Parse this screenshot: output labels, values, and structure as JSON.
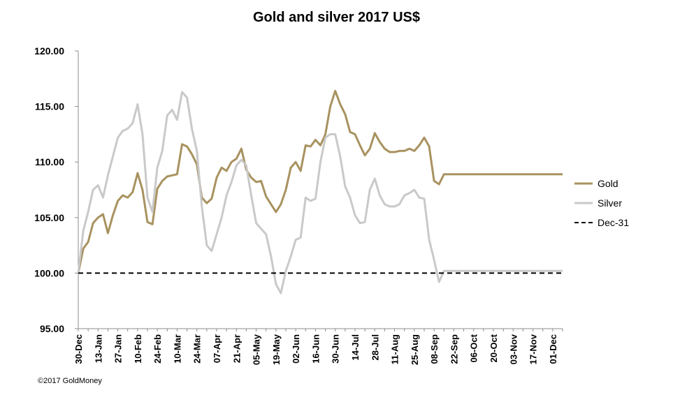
{
  "chart_data": {
    "type": "line",
    "title": "Gold and silver 2017  US$",
    "xlabel": "",
    "ylabel": "",
    "ylim": [
      95,
      120
    ],
    "yticks": [
      "95.00",
      "100.00",
      "105.00",
      "110.00",
      "115.00",
      "120.00"
    ],
    "xticks": [
      "30-Dec",
      "13-Jan",
      "27-Jan",
      "10-Feb",
      "24-Feb",
      "10-Mar",
      "24-Mar",
      "07-Apr",
      "21-Apr",
      "05-May",
      "19-May",
      "02-Jun",
      "16-Jun",
      "30-Jun",
      "14-Jul",
      "28-Jul",
      "11-Aug",
      "25-Aug",
      "08-Sep",
      "22-Sep",
      "06-Oct",
      "20-Oct",
      "03-Nov",
      "17-Nov",
      "01-Dec"
    ],
    "x_index_range": [
      0,
      49
    ],
    "grid": false,
    "legend_position": "right",
    "series": [
      {
        "name": "Gold",
        "color": "#a8925f",
        "x": [
          0,
          0.5,
          1,
          1.5,
          2,
          2.5,
          3,
          3.5,
          4,
          4.5,
          5,
          5.5,
          6,
          6.5,
          7,
          7.5,
          8,
          8.5,
          9,
          9.5,
          10,
          10.5,
          11,
          11.5,
          12,
          12.5,
          13,
          13.5,
          14,
          14.5,
          15,
          15.5,
          16,
          16.5,
          17,
          17.5,
          18,
          18.5,
          19,
          19.5,
          20,
          20.5,
          21,
          21.5,
          22,
          22.5,
          23,
          23.5,
          24,
          24.5,
          25,
          25.5,
          26,
          26.5,
          27,
          27.5,
          28,
          28.5,
          29,
          29.5,
          30,
          30.5,
          31,
          31.5,
          32,
          32.5,
          33,
          33.5,
          34,
          34.5,
          35,
          35.5,
          36,
          36.5,
          37,
          37.5,
          38,
          38.5,
          39,
          39.5,
          40,
          40.5,
          41,
          41.5,
          42,
          42.5,
          43,
          43.5,
          44,
          44.5,
          45,
          45.5,
          46,
          46.5,
          47,
          47.5,
          48,
          48.5,
          49
        ],
        "values": [
          100.0,
          102.2,
          102.8,
          104.5,
          105.0,
          105.3,
          103.6,
          105.2,
          106.5,
          107.0,
          106.8,
          107.3,
          109.0,
          107.5,
          104.6,
          104.4,
          107.6,
          108.3,
          108.7,
          108.8,
          108.9,
          111.6,
          111.4,
          110.7,
          109.8,
          106.8,
          106.3,
          106.7,
          108.6,
          109.5,
          109.2,
          110.0,
          110.3,
          111.2,
          109.3,
          108.6,
          108.2,
          108.3,
          106.9,
          106.2,
          105.5,
          106.2,
          107.5,
          109.5,
          110.0,
          109.2,
          111.5,
          111.4,
          112.0,
          111.5,
          112.5,
          115.0,
          116.4,
          115.2,
          114.3,
          112.7,
          112.5,
          111.5,
          110.6,
          111.2,
          112.6,
          111.8,
          111.2,
          110.9,
          110.9,
          111.0,
          111.0,
          111.2,
          111.0,
          111.5,
          112.2,
          111.4,
          108.3,
          108.0,
          108.9,
          108.9,
          108.9,
          108.9,
          108.9,
          108.9,
          108.9,
          108.9,
          108.9,
          108.9,
          108.9,
          108.9,
          108.9,
          108.9,
          108.9,
          108.9,
          108.9,
          108.9,
          108.9,
          108.9,
          108.9,
          108.9,
          108.9,
          108.9,
          108.9
        ]
      },
      {
        "name": "Silver",
        "color": "#c9c9c9",
        "x": [
          0,
          0.5,
          1,
          1.5,
          2,
          2.5,
          3,
          3.5,
          4,
          4.5,
          5,
          5.5,
          6,
          6.5,
          7,
          7.5,
          8,
          8.5,
          9,
          9.5,
          10,
          10.5,
          11,
          11.5,
          12,
          12.5,
          13,
          13.5,
          14,
          14.5,
          15,
          15.5,
          16,
          16.5,
          17,
          17.5,
          18,
          18.5,
          19,
          19.5,
          20,
          20.5,
          21,
          21.5,
          22,
          22.5,
          23,
          23.5,
          24,
          24.5,
          25,
          25.5,
          26,
          26.5,
          27,
          27.5,
          28,
          28.5,
          29,
          29.5,
          30,
          30.5,
          31,
          31.5,
          32,
          32.5,
          33,
          33.5,
          34,
          34.5,
          35,
          35.5,
          36,
          36.5,
          37,
          37.5,
          38,
          38.5,
          39,
          39.5,
          40,
          40.5,
          41,
          41.5,
          42,
          42.5,
          43,
          43.5,
          44,
          44.5,
          45,
          45.5,
          46,
          46.5,
          47,
          47.5,
          48,
          48.5,
          49
        ],
        "values": [
          100.0,
          103.8,
          105.5,
          107.5,
          107.9,
          106.8,
          108.8,
          110.5,
          112.2,
          112.8,
          113.0,
          113.5,
          115.2,
          112.5,
          106.8,
          105.5,
          109.5,
          111.0,
          114.2,
          114.7,
          113.8,
          116.3,
          115.8,
          113.0,
          111.0,
          106.0,
          102.5,
          102.0,
          103.5,
          105.0,
          107.0,
          108.2,
          109.7,
          110.2,
          109.7,
          107.0,
          104.5,
          104.0,
          103.5,
          101.5,
          99.0,
          98.2,
          100.2,
          101.5,
          103.0,
          103.2,
          106.8,
          106.5,
          106.7,
          110.0,
          112.2,
          112.5,
          112.5,
          110.5,
          107.8,
          106.8,
          105.2,
          104.5,
          104.6,
          107.5,
          108.5,
          107.0,
          106.2,
          106.0,
          106.0,
          106.2,
          107.0,
          107.2,
          107.5,
          106.8,
          106.7,
          103.0,
          101.2,
          99.2,
          100.2,
          100.2,
          100.2,
          100.2,
          100.2,
          100.2,
          100.2,
          100.2,
          100.2,
          100.2,
          100.2,
          100.2,
          100.2,
          100.2,
          100.2,
          100.2,
          100.2,
          100.2,
          100.2,
          100.2,
          100.2,
          100.2,
          100.2,
          100.2,
          100.2
        ]
      },
      {
        "name": "Dec-31",
        "color": "#000000",
        "style": "dashed",
        "x": [
          0,
          49
        ],
        "values": [
          100,
          100
        ]
      }
    ]
  },
  "footer": {
    "copyright": "©2017 GoldMoney"
  }
}
